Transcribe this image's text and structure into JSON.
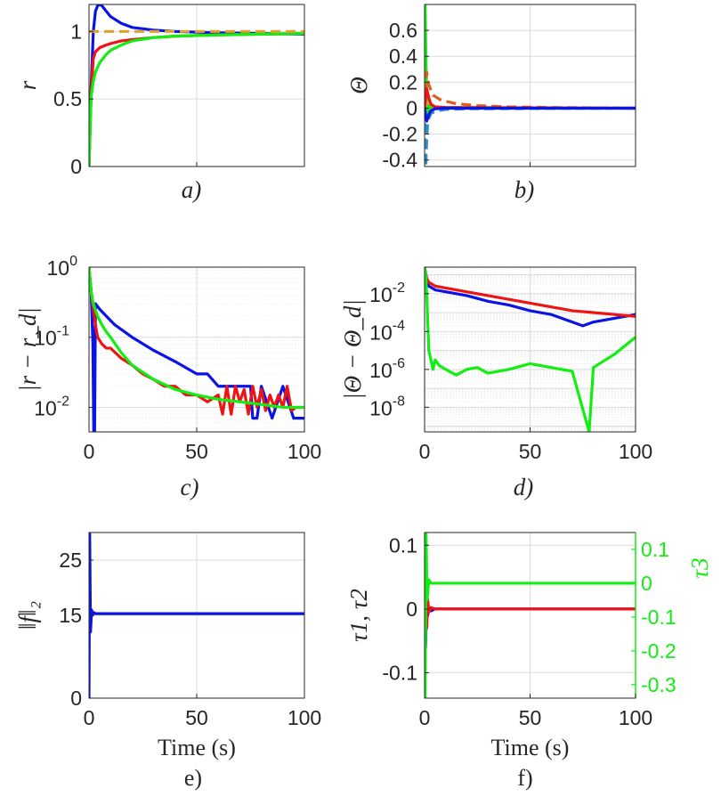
{
  "figure": {
    "xaxis_shared_label": "Time (s)",
    "xticks_labels": [
      "0",
      "50",
      "100"
    ]
  },
  "colors": {
    "blue": "#0a14e6",
    "red": "#ee1414",
    "green": "#11ee11",
    "orange": "#e0a030",
    "darkorange": "#d9611c",
    "teal": "#2b8fc8",
    "axis": "#262626"
  },
  "chart_data": [
    {
      "id": "a",
      "type": "line",
      "caption": "a)",
      "ylabel": "r",
      "xlim": [
        0,
        100
      ],
      "ylim": [
        0,
        1.2
      ],
      "yticks": [
        0,
        0.5,
        1
      ],
      "ytick_labels": [
        "0",
        "0.5",
        "1"
      ],
      "xtick_labels_shown": false,
      "series": [
        {
          "name": "blue",
          "color": "#0a14e6",
          "x": [
            0,
            1,
            2,
            3,
            4,
            5,
            6,
            8,
            10,
            15,
            20,
            30,
            40,
            60,
            80,
            100
          ],
          "y": [
            0,
            0.6,
            1.0,
            1.15,
            1.19,
            1.2,
            1.19,
            1.15,
            1.11,
            1.06,
            1.03,
            1.01,
            1.0,
            0.99,
            0.985,
            0.98
          ]
        },
        {
          "name": "red",
          "color": "#ee1414",
          "x": [
            0,
            1,
            2,
            3,
            5,
            8,
            10,
            15,
            20,
            30,
            40,
            60,
            80,
            100
          ],
          "y": [
            0,
            0.55,
            0.8,
            0.85,
            0.88,
            0.9,
            0.91,
            0.93,
            0.94,
            0.955,
            0.965,
            0.975,
            0.98,
            0.985
          ]
        },
        {
          "name": "green",
          "color": "#11ee11",
          "x": [
            0,
            1,
            2,
            3,
            5,
            8,
            10,
            15,
            20,
            30,
            40,
            60,
            80,
            100
          ],
          "y": [
            0,
            0.52,
            0.63,
            0.7,
            0.77,
            0.83,
            0.86,
            0.9,
            0.93,
            0.955,
            0.965,
            0.975,
            0.98,
            0.985
          ]
        },
        {
          "name": "reference",
          "color": "#e0a030",
          "dashed": true,
          "x": [
            0,
            100
          ],
          "y": [
            1,
            1
          ]
        }
      ]
    },
    {
      "id": "b",
      "type": "line",
      "caption": "b)",
      "ylabel": "Θ",
      "xlim": [
        0,
        100
      ],
      "ylim": [
        -0.45,
        0.8
      ],
      "yticks": [
        -0.4,
        -0.2,
        0,
        0.2,
        0.4,
        0.6
      ],
      "ytick_labels": [
        "-0.4",
        "-0.2",
        "0",
        "0.2",
        "0.4",
        "0.6"
      ],
      "xtick_labels_shown": false,
      "series": [
        {
          "name": "green",
          "color": "#11ee11",
          "x": [
            0,
            0.3,
            0.6,
            1,
            1.5,
            2,
            3,
            5,
            100
          ],
          "y": [
            0,
            0.8,
            0.45,
            0.1,
            -0.05,
            0.02,
            0.0,
            0.0,
            0.0
          ]
        },
        {
          "name": "darkorange-dashed",
          "color": "#d9611c",
          "dashed": true,
          "x": [
            0,
            1,
            2,
            4,
            8,
            15,
            25,
            40,
            60,
            100
          ],
          "y": [
            0,
            0.28,
            0.18,
            0.1,
            0.06,
            0.035,
            0.02,
            0.01,
            0.005,
            0.0
          ]
        },
        {
          "name": "teal-dashed",
          "color": "#2b8fc8",
          "dashed": true,
          "x": [
            0,
            0.6,
            1,
            1.5,
            3,
            6,
            10,
            20,
            100
          ],
          "y": [
            0,
            -0.45,
            -0.25,
            -0.1,
            -0.04,
            -0.02,
            -0.01,
            -0.005,
            0.0
          ]
        },
        {
          "name": "yellow-dashed",
          "color": "#e0a030",
          "dashed": true,
          "x": [
            0,
            1,
            3,
            10,
            100
          ],
          "y": [
            0,
            0.05,
            0.01,
            0.003,
            0.0
          ]
        },
        {
          "name": "red",
          "color": "#ee1414",
          "x": [
            0,
            1,
            2,
            3,
            5,
            10,
            100
          ],
          "y": [
            0,
            0.15,
            0.08,
            0.03,
            0.01,
            0.005,
            0.0
          ]
        },
        {
          "name": "blue",
          "color": "#0a14e6",
          "x": [
            0,
            1,
            2,
            3,
            5,
            10,
            100
          ],
          "y": [
            0,
            -0.1,
            -0.05,
            -0.02,
            -0.005,
            0.0,
            0.0
          ]
        }
      ]
    },
    {
      "id": "c",
      "type": "line",
      "scale": "log",
      "caption": "c)",
      "ylabel": "|r − r_d|",
      "xlim": [
        0,
        100
      ],
      "ylim_log10": [
        -2.35,
        0
      ],
      "yticks_log10": [
        -2,
        -1,
        0
      ],
      "ytick_labels": [
        "10",
        "10",
        "10"
      ],
      "ytick_exponents": [
        "-2",
        "-1",
        "0"
      ],
      "xticks": [
        0,
        50,
        100
      ],
      "series": [
        {
          "name": "blue",
          "color": "#0a14e6",
          "x": [
            0,
            1,
            1.8,
            2.2,
            2.6,
            3,
            5,
            8,
            12,
            20,
            30,
            40,
            50,
            55,
            60,
            65,
            70,
            75,
            76,
            78,
            80,
            85,
            90,
            95,
            100
          ],
          "y": [
            1.0,
            0.45,
            0.08,
            0.004,
            0.004,
            0.3,
            0.25,
            0.2,
            0.15,
            0.1,
            0.065,
            0.045,
            0.03,
            0.03,
            0.02,
            0.02,
            0.02,
            0.02,
            0.007,
            0.007,
            0.02,
            0.007,
            0.02,
            0.007,
            0.007
          ]
        },
        {
          "name": "red",
          "color": "#ee1414",
          "x": [
            0,
            1,
            2,
            3,
            4,
            6,
            8,
            10,
            15,
            20,
            25,
            30,
            35,
            40,
            45,
            50,
            55,
            60,
            62,
            64,
            66,
            68,
            70,
            72,
            74,
            76,
            78,
            80,
            82,
            84,
            86,
            88,
            90,
            92,
            94,
            96,
            100
          ],
          "y": [
            1.0,
            0.45,
            0.25,
            0.15,
            0.1,
            0.08,
            0.07,
            0.07,
            0.05,
            0.04,
            0.03,
            0.025,
            0.02,
            0.02,
            0.015,
            0.015,
            0.012,
            0.015,
            0.008,
            0.02,
            0.008,
            0.02,
            0.012,
            0.018,
            0.008,
            0.02,
            0.01,
            0.018,
            0.009,
            0.015,
            0.01,
            0.015,
            0.01,
            0.02,
            0.009,
            0.01,
            0.01
          ]
        },
        {
          "name": "green",
          "color": "#11ee11",
          "x": [
            0,
            1,
            2,
            4,
            6,
            8,
            10,
            15,
            20,
            30,
            40,
            50,
            60,
            70,
            80,
            90,
            100
          ],
          "y": [
            1.0,
            0.45,
            0.3,
            0.2,
            0.15,
            0.12,
            0.1,
            0.06,
            0.04,
            0.025,
            0.018,
            0.015,
            0.013,
            0.012,
            0.011,
            0.01,
            0.01
          ]
        }
      ]
    },
    {
      "id": "d",
      "type": "line",
      "scale": "log",
      "caption": "d)",
      "ylabel": "|Θ − Θ_d|",
      "xlim": [
        0,
        100
      ],
      "ylim_log10": [
        -9.3,
        -0.6
      ],
      "yticks_log10": [
        -8,
        -6,
        -4,
        -2
      ],
      "ytick_labels": [
        "10",
        "10",
        "10",
        "10"
      ],
      "ytick_exponents": [
        "-8",
        "-6",
        "-4",
        "-2"
      ],
      "xticks": [
        0,
        50,
        100
      ],
      "series": [
        {
          "name": "blue",
          "color": "#0a14e6",
          "x": [
            0,
            1,
            2,
            5,
            10,
            20,
            30,
            40,
            50,
            60,
            65,
            70,
            75,
            80,
            85,
            90,
            95,
            100
          ],
          "y_log10": [
            -0.6,
            -1.3,
            -1.6,
            -1.8,
            -1.9,
            -2.1,
            -2.4,
            -2.6,
            -2.9,
            -3.1,
            -3.3,
            -3.5,
            -3.7,
            -3.5,
            -3.4,
            -3.3,
            -3.2,
            -3.1
          ]
        },
        {
          "name": "red",
          "color": "#ee1414",
          "x": [
            0,
            1,
            2,
            5,
            10,
            20,
            30,
            40,
            50,
            60,
            70,
            80,
            90,
            100
          ],
          "y_log10": [
            -0.6,
            -1.2,
            -1.4,
            -1.6,
            -1.7,
            -1.9,
            -2.1,
            -2.3,
            -2.5,
            -2.7,
            -2.9,
            -3.0,
            -3.1,
            -3.2
          ]
        },
        {
          "name": "green",
          "color": "#11ee11",
          "x": [
            0,
            0.5,
            1,
            1.5,
            2,
            3,
            4,
            5,
            7,
            10,
            15,
            20,
            25,
            30,
            40,
            50,
            60,
            70,
            78,
            80,
            90,
            100
          ],
          "y_log10": [
            -0.6,
            -1.0,
            -2.0,
            -3.5,
            -5.0,
            -5.5,
            -6.0,
            -5.5,
            -5.8,
            -6.0,
            -6.3,
            -6.0,
            -5.9,
            -6.2,
            -6.0,
            -5.7,
            -5.9,
            -6.1,
            -9.3,
            -5.9,
            -5.2,
            -4.3
          ]
        }
      ]
    },
    {
      "id": "e",
      "type": "line",
      "caption": "e)",
      "ylabel": "‖f‖₂",
      "xlabel": "Time (s)",
      "xlim": [
        0,
        100
      ],
      "ylim": [
        0,
        30
      ],
      "yticks": [
        0,
        15,
        25
      ],
      "ytick_labels": [
        "0",
        "15",
        "25"
      ],
      "xticks": [
        0,
        50,
        100
      ],
      "series": [
        {
          "name": "blue",
          "color": "#0a14e6",
          "x": [
            0,
            0.3,
            0.7,
            1.2,
            1.6,
            2.2,
            3,
            100
          ],
          "y": [
            0,
            30,
            12,
            16,
            15,
            15.5,
            15.3,
            15.3
          ]
        }
      ]
    },
    {
      "id": "f",
      "type": "line",
      "dual_axis": true,
      "caption": "f)",
      "ylabel": "τ1, τ2",
      "ylabel_right": "τ3",
      "xlabel": "Time (s)",
      "xlim": [
        0,
        100
      ],
      "ylim": [
        -0.14,
        0.12
      ],
      "yticks": [
        -0.1,
        0,
        0.1
      ],
      "ytick_labels": [
        "-0.1",
        "0",
        "0.1"
      ],
      "ylim_right": [
        -0.34,
        0.15
      ],
      "yticks_right": [
        -0.3,
        -0.2,
        -0.1,
        0,
        0.1
      ],
      "ytick_labels_right": [
        "-0.3",
        "-0.2",
        "-0.1",
        "0",
        "0.1"
      ],
      "xticks": [
        0,
        50,
        100
      ],
      "series": [
        {
          "name": "blue",
          "color": "#0a14e6",
          "x": [
            0,
            0.5,
            1,
            1.5,
            2,
            3,
            5,
            100
          ],
          "y": [
            0,
            -0.06,
            0.02,
            -0.01,
            0.003,
            -0.003,
            0.0,
            0.0
          ]
        },
        {
          "name": "red",
          "color": "#ee1414",
          "x": [
            0,
            0.5,
            1,
            1.5,
            2,
            3,
            5,
            100
          ],
          "y": [
            0,
            0.04,
            -0.03,
            0.015,
            -0.005,
            0.002,
            0.0,
            0.0
          ]
        },
        {
          "name": "green",
          "axis": "right",
          "color": "#11ee11",
          "x": [
            0,
            0.3,
            0.7,
            1.2,
            2,
            3,
            100
          ],
          "y": [
            0.05,
            -0.34,
            0.15,
            -0.05,
            0.01,
            0.0,
            0.0
          ]
        }
      ]
    }
  ]
}
